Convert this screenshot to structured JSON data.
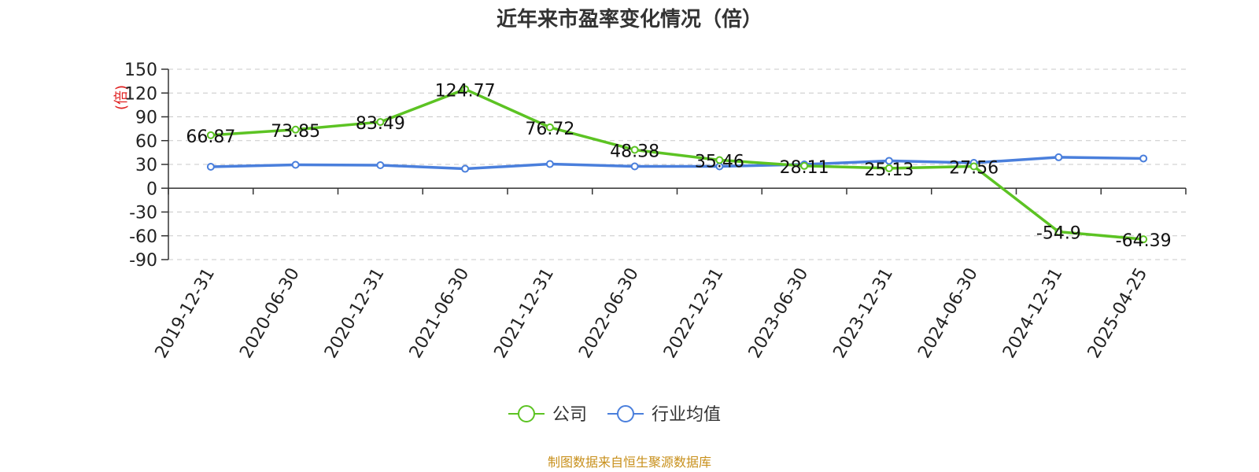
{
  "chart_data": {
    "type": "line",
    "title": "近年来市盈率变化情况（倍）",
    "ylabel": "(倍)",
    "categories": [
      "2019-12-31",
      "2020-06-30",
      "2020-12-31",
      "2021-06-30",
      "2021-12-31",
      "2022-06-30",
      "2022-12-31",
      "2023-06-30",
      "2023-12-31",
      "2024-06-30",
      "2024-12-31",
      "2025-04-25"
    ],
    "yticks": [
      150,
      120,
      90,
      60,
      30,
      0,
      -30,
      -60,
      -90
    ],
    "ylim": [
      -90,
      150
    ],
    "grid": true,
    "legend_position": "bottom-center",
    "series": [
      {
        "name": "公司",
        "color": "#5cc323",
        "values": [
          66.87,
          73.85,
          83.49,
          124.77,
          76.72,
          48.38,
          35.46,
          28.11,
          25.13,
          27.56,
          -54.9,
          -64.39
        ],
        "labels": [
          "66.87",
          "73.85",
          "83.49",
          "124.77",
          "76.72",
          "48.38",
          "35.46",
          "28.11",
          "25.13",
          "27.56",
          "-54.9",
          "-64.39"
        ]
      },
      {
        "name": "行业均值",
        "color": "#4a7fdc",
        "values": [
          27,
          29.5,
          29,
          24.5,
          30.5,
          27.5,
          27.5,
          30,
          34.5,
          32,
          39,
          37.5
        ]
      }
    ]
  },
  "footer": {
    "source": "制图数据来自恒生聚源数据库"
  }
}
